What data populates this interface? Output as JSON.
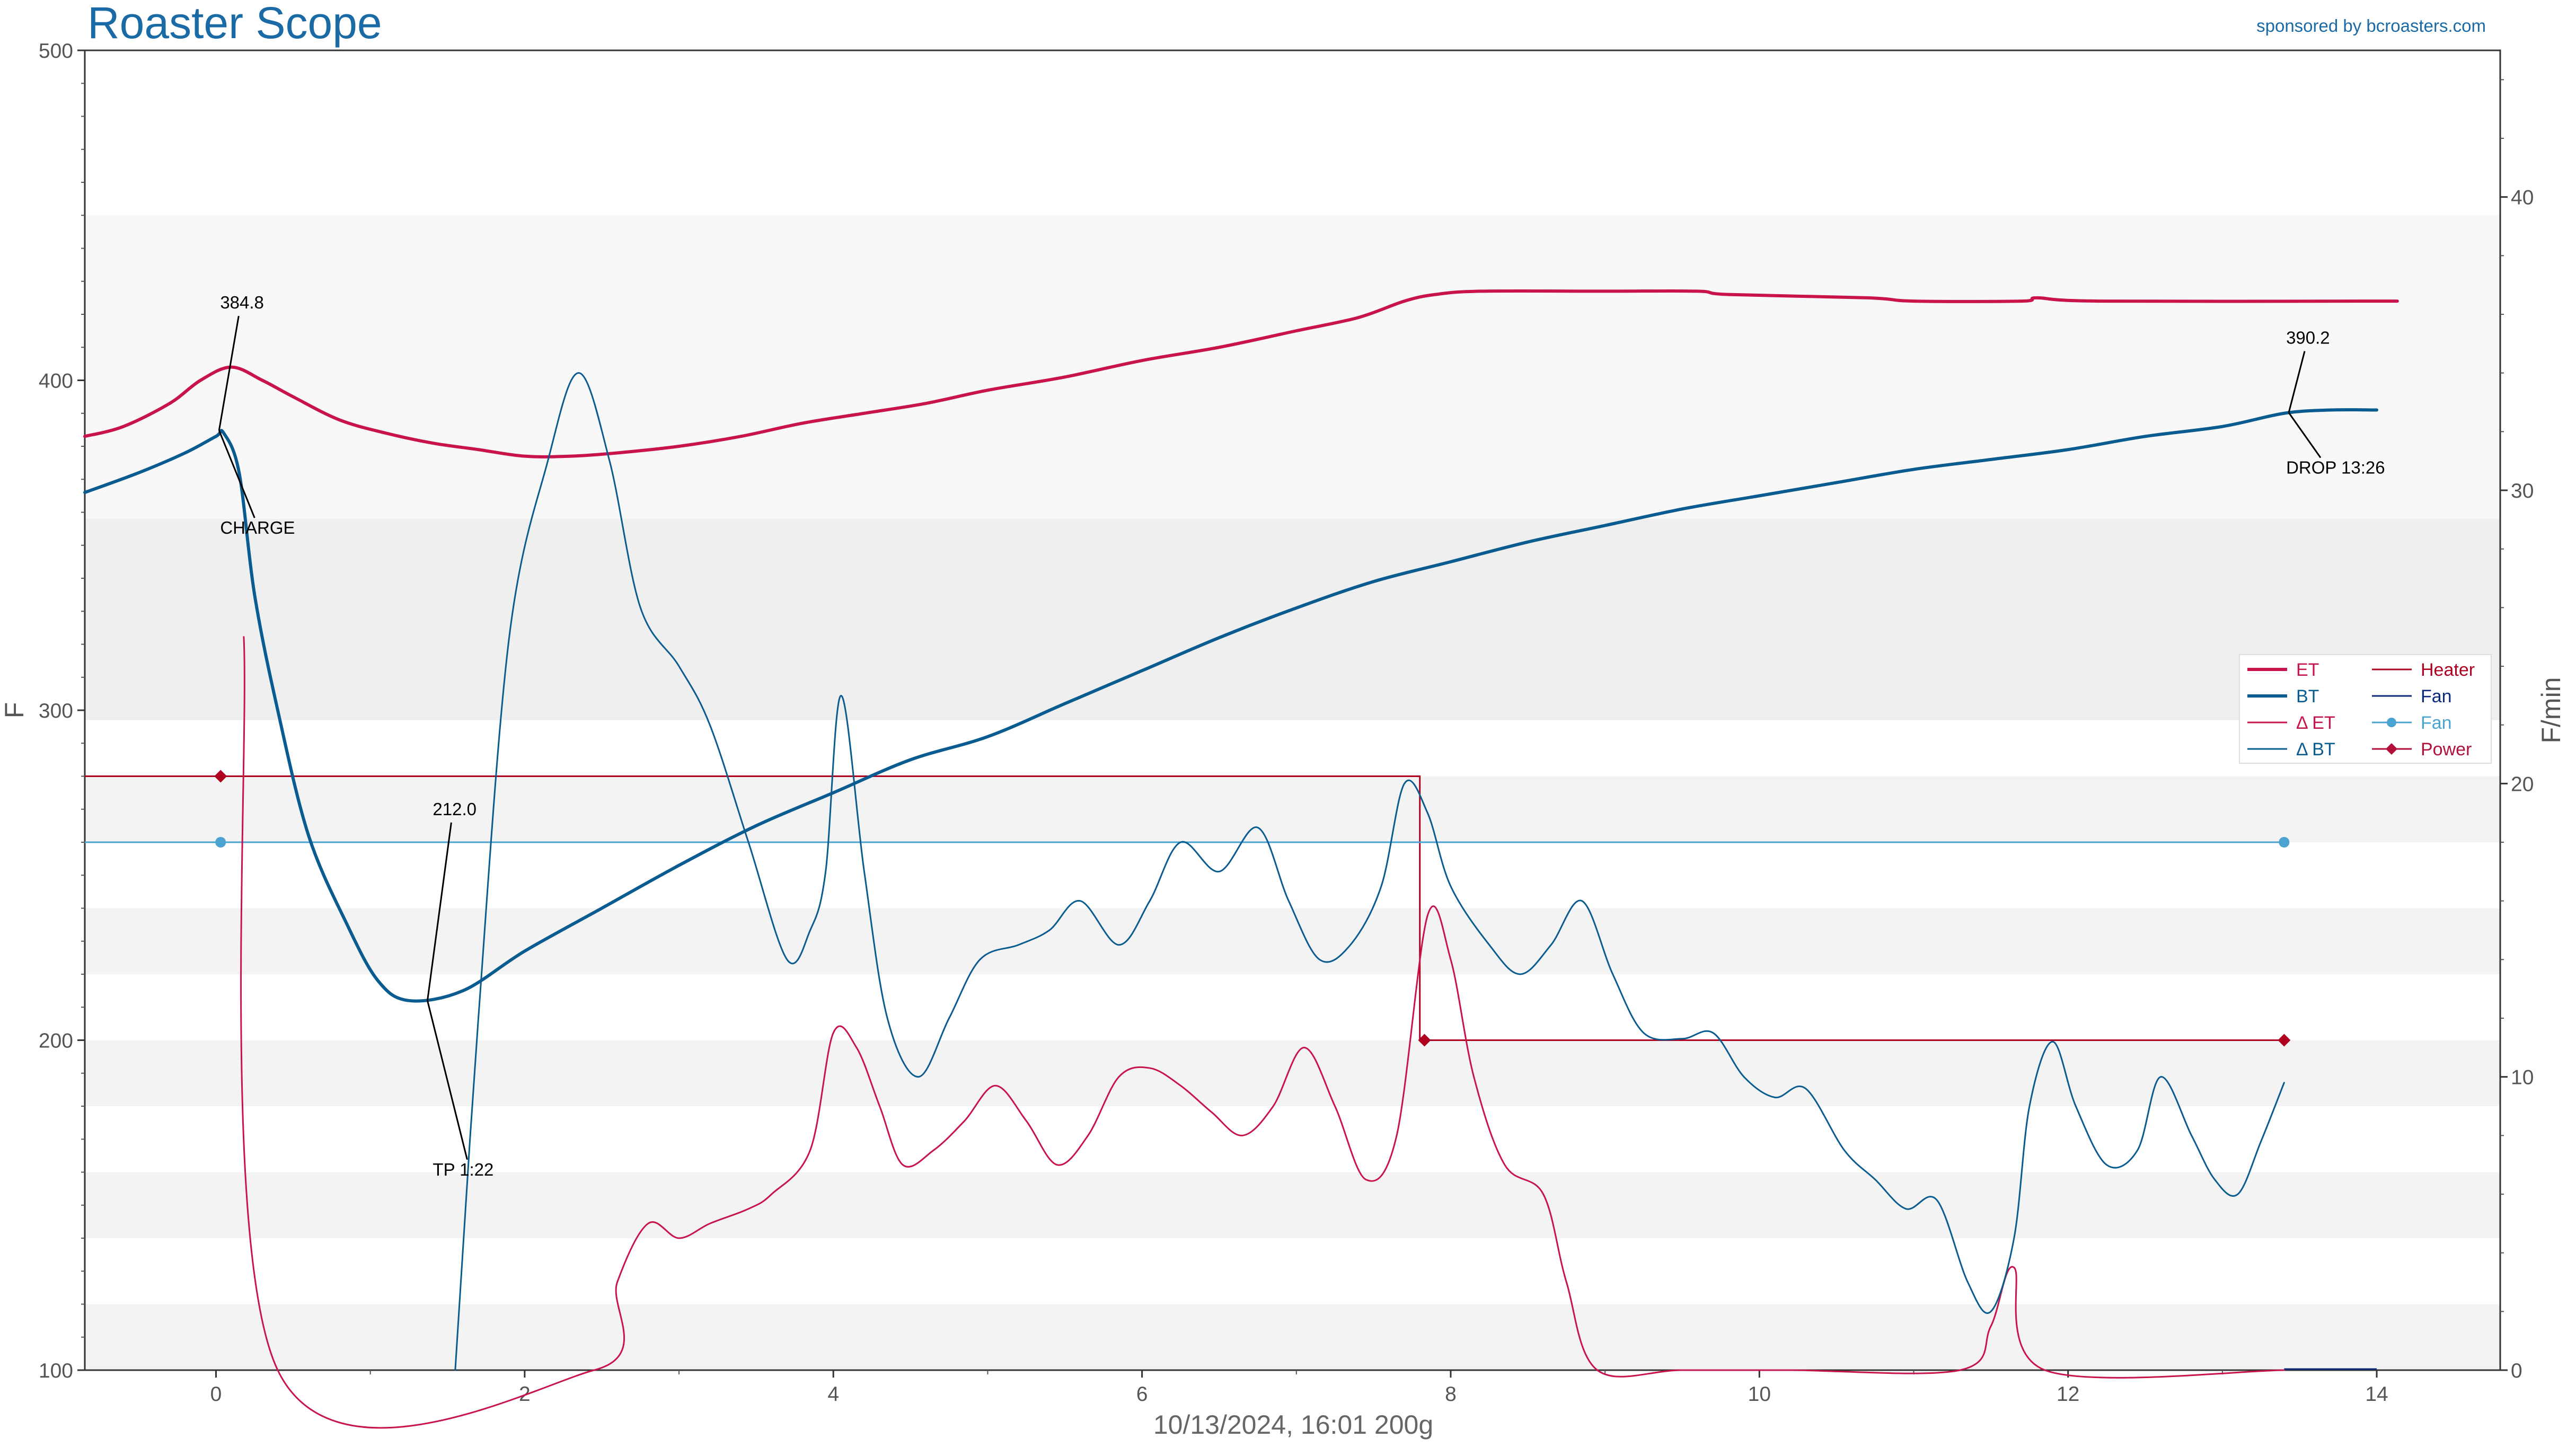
{
  "header": {
    "title": "Roaster Scope",
    "sponsor": "sponsored by bcroasters.com"
  },
  "chart_data": {
    "type": "line",
    "xlabel": "10/13/2024, 16:01   200g",
    "ylabel_left": "F",
    "ylabel_right": "F/min",
    "xlim": [
      -0.85,
      14.8
    ],
    "ylim_left": [
      100,
      500
    ],
    "ylim_right": [
      0,
      45
    ],
    "x_ticks": [
      0,
      2,
      4,
      6,
      8,
      10,
      12,
      14
    ],
    "y_left_ticks": [
      100,
      200,
      300,
      400,
      500
    ],
    "y_right_ticks": [
      0,
      10,
      20,
      30,
      40
    ],
    "grid": true,
    "bands_left": [
      {
        "from": 100,
        "to": 120,
        "fill": "#f3f3f3"
      },
      {
        "from": 140,
        "to": 160,
        "fill": "#f3f3f3"
      },
      {
        "from": 180,
        "to": 200,
        "fill": "#f3f3f3"
      },
      {
        "from": 220,
        "to": 240,
        "fill": "#f3f3f3"
      },
      {
        "from": 260,
        "to": 280,
        "fill": "#f3f3f3"
      },
      {
        "from": 297,
        "to": 358,
        "fill": "#efefef"
      },
      {
        "from": 358,
        "to": 450,
        "fill": "#f8f8f8"
      }
    ],
    "legend_placement": "right",
    "legend": [
      {
        "label": "ET",
        "color": "#c8144a",
        "style": "thick"
      },
      {
        "label": "BT",
        "color": "#0a5c90",
        "style": "thick"
      },
      {
        "label": "Δ ET",
        "color": "#c8144a",
        "style": "thin"
      },
      {
        "label": "Δ BT",
        "color": "#0a5c90",
        "style": "thin"
      },
      {
        "label": "Heater",
        "color": "#b00020",
        "style": "thin"
      },
      {
        "label": "Fan",
        "color": "#0b2a7a",
        "style": "thin"
      },
      {
        "label": "Fan",
        "color": "#4aa3d0",
        "style": "dot"
      },
      {
        "label": "Power",
        "color": "#b0103a",
        "style": "diamond"
      }
    ],
    "series": [
      {
        "name": "ET",
        "axis": "left",
        "color": "#c8144a",
        "width": 6,
        "points": [
          [
            -0.85,
            383
          ],
          [
            -0.6,
            386
          ],
          [
            -0.3,
            393
          ],
          [
            -0.1,
            400
          ],
          [
            0.1,
            404
          ],
          [
            0.3,
            400
          ],
          [
            0.5,
            395
          ],
          [
            0.8,
            388
          ],
          [
            1.1,
            384
          ],
          [
            1.4,
            381
          ],
          [
            1.7,
            379
          ],
          [
            2,
            377
          ],
          [
            2.3,
            377
          ],
          [
            2.6,
            378
          ],
          [
            3,
            380
          ],
          [
            3.4,
            383
          ],
          [
            3.8,
            387
          ],
          [
            4.2,
            390
          ],
          [
            4.6,
            393
          ],
          [
            5,
            397
          ],
          [
            5.5,
            401
          ],
          [
            6,
            406
          ],
          [
            6.5,
            410
          ],
          [
            7,
            415
          ],
          [
            7.4,
            419
          ],
          [
            7.7,
            424
          ],
          [
            7.9,
            426
          ],
          [
            8.2,
            427
          ],
          [
            9,
            427
          ],
          [
            9.6,
            427
          ],
          [
            9.8,
            426
          ],
          [
            10.7,
            425
          ],
          [
            11,
            424
          ],
          [
            11.7,
            424
          ],
          [
            11.8,
            425
          ],
          [
            12.2,
            424
          ],
          [
            14,
            424
          ],
          [
            14.0,
            424
          ]
        ]
      },
      {
        "name": "BT",
        "axis": "left",
        "color": "#0a5c90",
        "width": 6,
        "points": [
          [
            -0.85,
            366
          ],
          [
            -0.5,
            372
          ],
          [
            -0.2,
            378
          ],
          [
            0.0,
            383
          ],
          [
            0.05,
            384
          ],
          [
            0.15,
            372
          ],
          [
            0.25,
            335
          ],
          [
            0.4,
            300
          ],
          [
            0.6,
            262
          ],
          [
            0.85,
            235
          ],
          [
            1.05,
            218
          ],
          [
            1.25,
            212
          ],
          [
            1.6,
            215
          ],
          [
            2,
            227
          ],
          [
            2.5,
            240
          ],
          [
            3,
            253
          ],
          [
            3.5,
            265
          ],
          [
            4,
            275
          ],
          [
            4.5,
            285
          ],
          [
            5,
            292
          ],
          [
            5.5,
            302
          ],
          [
            6,
            312
          ],
          [
            6.5,
            322
          ],
          [
            7,
            331
          ],
          [
            7.5,
            339
          ],
          [
            8,
            345
          ],
          [
            8.5,
            351
          ],
          [
            9,
            356
          ],
          [
            9.5,
            361
          ],
          [
            10,
            365
          ],
          [
            10.5,
            369
          ],
          [
            11,
            373
          ],
          [
            11.5,
            376
          ],
          [
            12,
            379
          ],
          [
            12.5,
            383
          ],
          [
            13,
            386
          ],
          [
            13.4,
            390
          ],
          [
            13.7,
            391
          ],
          [
            14,
            391
          ]
        ]
      },
      {
        "name": "Δ ET",
        "axis": "right",
        "color": "#c8144a",
        "width": 3,
        "points": [
          [
            0.18,
            25
          ],
          [
            0.4,
            0
          ],
          [
            2.45,
            0
          ],
          [
            2.6,
            3
          ],
          [
            2.8,
            5
          ],
          [
            3,
            4.5
          ],
          [
            3.2,
            5
          ],
          [
            3.45,
            5.5
          ],
          [
            3.6,
            6
          ],
          [
            3.85,
            7.5
          ],
          [
            4,
            11.5
          ],
          [
            4.15,
            11
          ],
          [
            4.3,
            9
          ],
          [
            4.45,
            7
          ],
          [
            4.65,
            7.5
          ],
          [
            4.85,
            8.5
          ],
          [
            5.05,
            9.7
          ],
          [
            5.25,
            8.5
          ],
          [
            5.45,
            7
          ],
          [
            5.65,
            8
          ],
          [
            5.85,
            10
          ],
          [
            6.05,
            10.3
          ],
          [
            6.25,
            9.7
          ],
          [
            6.45,
            8.8
          ],
          [
            6.65,
            8
          ],
          [
            6.85,
            9
          ],
          [
            7.05,
            11
          ],
          [
            7.25,
            9
          ],
          [
            7.45,
            6.5
          ],
          [
            7.65,
            8
          ],
          [
            7.85,
            15.5
          ],
          [
            8.0,
            14
          ],
          [
            8.15,
            10
          ],
          [
            8.35,
            7
          ],
          [
            8.6,
            6
          ],
          [
            8.75,
            3
          ],
          [
            8.95,
            0
          ],
          [
            9.5,
            0
          ],
          [
            10.2,
            0
          ],
          [
            11.3,
            0
          ],
          [
            11.5,
            1.5
          ],
          [
            11.65,
            3.5
          ],
          [
            11.85,
            0
          ],
          [
            13.4,
            0
          ]
        ]
      },
      {
        "name": "Δ BT",
        "axis": "right",
        "color": "#0a5c90",
        "width": 3,
        "points": [
          [
            1.55,
            0
          ],
          [
            1.7,
            12
          ],
          [
            1.9,
            25
          ],
          [
            2.15,
            31
          ],
          [
            2.35,
            34
          ],
          [
            2.55,
            31
          ],
          [
            2.75,
            26
          ],
          [
            3,
            24
          ],
          [
            3.2,
            22
          ],
          [
            3.45,
            18
          ],
          [
            3.7,
            14
          ],
          [
            3.85,
            15
          ],
          [
            3.95,
            17
          ],
          [
            4.05,
            23
          ],
          [
            4.2,
            17
          ],
          [
            4.35,
            12
          ],
          [
            4.55,
            10
          ],
          [
            4.75,
            12
          ],
          [
            4.95,
            14
          ],
          [
            5.2,
            14.5
          ],
          [
            5.4,
            15
          ],
          [
            5.6,
            16
          ],
          [
            5.85,
            14.5
          ],
          [
            6.05,
            16
          ],
          [
            6.25,
            18
          ],
          [
            6.5,
            17
          ],
          [
            6.75,
            18.5
          ],
          [
            6.95,
            16
          ],
          [
            7.15,
            14
          ],
          [
            7.35,
            14.5
          ],
          [
            7.55,
            16.5
          ],
          [
            7.7,
            20
          ],
          [
            7.85,
            19
          ],
          [
            8.0,
            16.5
          ],
          [
            8.25,
            14.5
          ],
          [
            8.45,
            13.5
          ],
          [
            8.65,
            14.5
          ],
          [
            8.85,
            16
          ],
          [
            9.05,
            13.5
          ],
          [
            9.25,
            11.5
          ],
          [
            9.5,
            11.3
          ],
          [
            9.7,
            11.5
          ],
          [
            9.9,
            10
          ],
          [
            10.1,
            9.3
          ],
          [
            10.3,
            9.6
          ],
          [
            10.55,
            7.5
          ],
          [
            10.75,
            6.5
          ],
          [
            10.95,
            5.5
          ],
          [
            11.15,
            5.8
          ],
          [
            11.35,
            3
          ],
          [
            11.5,
            2
          ],
          [
            11.65,
            4.5
          ],
          [
            11.75,
            9
          ],
          [
            11.9,
            11.2
          ],
          [
            12.05,
            9
          ],
          [
            12.25,
            7
          ],
          [
            12.45,
            7.5
          ],
          [
            12.6,
            10
          ],
          [
            12.8,
            8
          ],
          [
            12.95,
            6.5
          ],
          [
            13.1,
            6
          ],
          [
            13.25,
            7.8
          ],
          [
            13.4,
            9.8
          ]
        ]
      }
    ],
    "heater": {
      "color": "#b00020",
      "points": [
        [
          -0.85,
          280
        ],
        [
          7.8,
          280
        ],
        [
          7.8,
          200
        ],
        [
          13.4,
          200
        ]
      ],
      "markers": [
        [
          0.03,
          280
        ],
        [
          7.83,
          200
        ],
        [
          13.4,
          200
        ]
      ]
    },
    "fan": {
      "color": "#4aa3d0",
      "points": [
        [
          -0.85,
          260
        ],
        [
          13.4,
          260
        ]
      ],
      "markers": [
        [
          0.03,
          260
        ],
        [
          13.4,
          260
        ]
      ]
    },
    "fan_dark": {
      "color": "#0b2a7a",
      "points": [
        [
          13.4,
          100
        ],
        [
          14.0,
          100
        ]
      ]
    },
    "annotations": [
      {
        "label": "CHARGE",
        "value": "384.8",
        "x": 0.02,
        "y": 384.8
      },
      {
        "label": "TP 1:22",
        "value": "212.0",
        "x": 1.37,
        "y": 212.0
      },
      {
        "label": "DROP 13:26",
        "value": "390.2",
        "x": 13.43,
        "y": 390.2
      }
    ]
  }
}
